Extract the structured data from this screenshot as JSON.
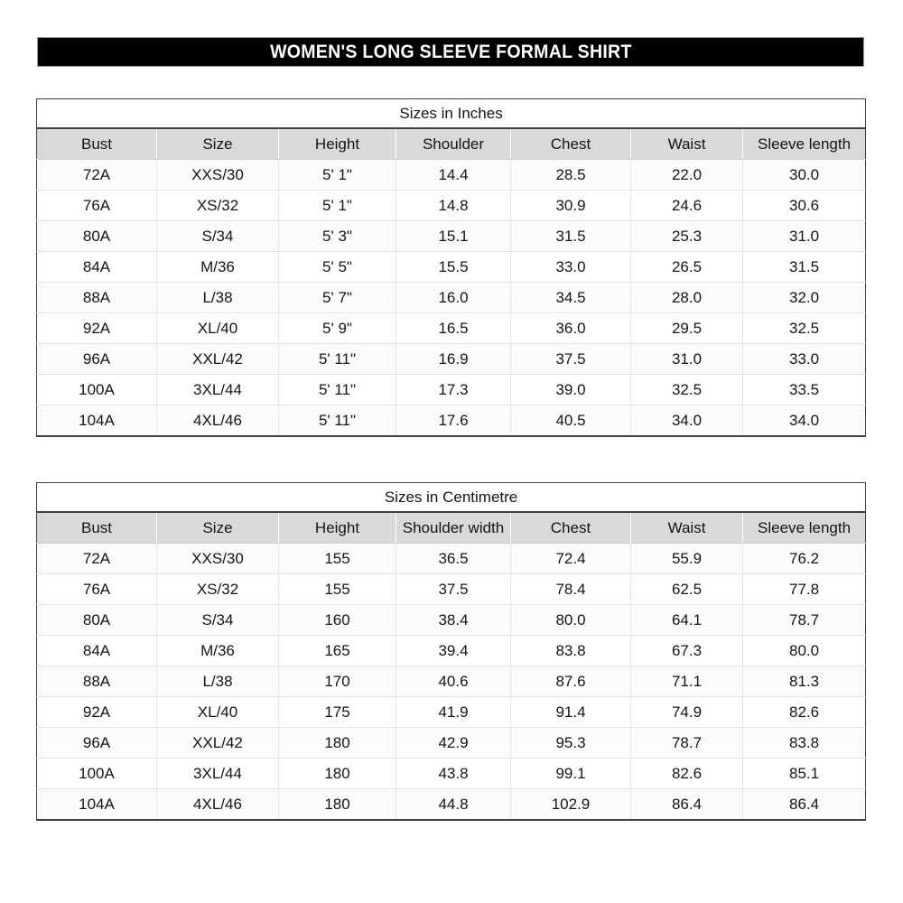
{
  "banner": {
    "title": "WOMEN'S LONG SLEEVE FORMAL SHIRT",
    "background_color": "#000000",
    "text_color": "#ffffff"
  },
  "tables": [
    {
      "title": "Sizes in Inches",
      "headers": [
        "Bust",
        "Size",
        "Height",
        "Shoulder",
        "Chest",
        "Waist",
        "Sleeve length"
      ],
      "rows": [
        [
          "72A",
          "XXS/30",
          "5' 1\"",
          "14.4",
          "28.5",
          "22.0",
          "30.0"
        ],
        [
          "76A",
          "XS/32",
          "5' 1\"",
          "14.8",
          "30.9",
          "24.6",
          "30.6"
        ],
        [
          "80A",
          "S/34",
          "5' 3\"",
          "15.1",
          "31.5",
          "25.3",
          "31.0"
        ],
        [
          "84A",
          "M/36",
          "5' 5\"",
          "15.5",
          "33.0",
          "26.5",
          "31.5"
        ],
        [
          "88A",
          "L/38",
          "5' 7\"",
          "16.0",
          "34.5",
          "28.0",
          "32.0"
        ],
        [
          "92A",
          "XL/40",
          "5' 9\"",
          "16.5",
          "36.0",
          "29.5",
          "32.5"
        ],
        [
          "96A",
          "XXL/42",
          "5' 11\"",
          "16.9",
          "37.5",
          "31.0",
          "33.0"
        ],
        [
          "100A",
          "3XL/44",
          "5' 11\"",
          "17.3",
          "39.0",
          "32.5",
          "33.5"
        ],
        [
          "104A",
          "4XL/46",
          "5' 11\"",
          "17.6",
          "40.5",
          "34.0",
          "34.0"
        ]
      ]
    },
    {
      "title": "Sizes in Centimetre",
      "headers": [
        "Bust",
        "Size",
        "Height",
        "Shoulder width",
        "Chest",
        "Waist",
        "Sleeve length"
      ],
      "rows": [
        [
          "72A",
          "XXS/30",
          "155",
          "36.5",
          "72.4",
          "55.9",
          "76.2"
        ],
        [
          "76A",
          "XS/32",
          "155",
          "37.5",
          "78.4",
          "62.5",
          "77.8"
        ],
        [
          "80A",
          "S/34",
          "160",
          "38.4",
          "80.0",
          "64.1",
          "78.7"
        ],
        [
          "84A",
          "M/36",
          "165",
          "39.4",
          "83.8",
          "67.3",
          "80.0"
        ],
        [
          "88A",
          "L/38",
          "170",
          "40.6",
          "87.6",
          "71.1",
          "81.3"
        ],
        [
          "92A",
          "XL/40",
          "175",
          "41.9",
          "91.4",
          "74.9",
          "82.6"
        ],
        [
          "96A",
          "XXL/42",
          "180",
          "42.9",
          "95.3",
          "78.7",
          "83.8"
        ],
        [
          "100A",
          "3XL/44",
          "180",
          "43.8",
          "99.1",
          "82.6",
          "85.1"
        ],
        [
          "104A",
          "4XL/46",
          "180",
          "44.8",
          "102.9",
          "86.4",
          "86.4"
        ]
      ]
    }
  ],
  "colors": {
    "header_row_bg": "#d9d9d9",
    "outer_border": "#404040",
    "grid_line": "#e2e2e2"
  }
}
